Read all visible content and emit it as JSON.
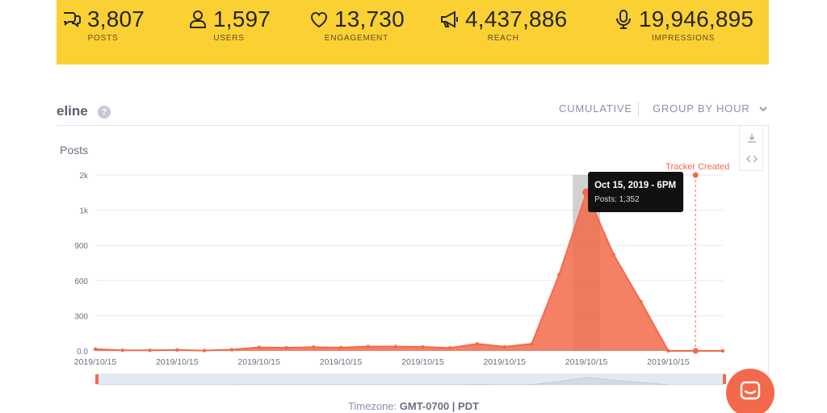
{
  "stats": [
    {
      "icon": "comments-icon",
      "value": "3,807",
      "label": "POSTS"
    },
    {
      "icon": "user-icon",
      "value": "1,597",
      "label": "USERS"
    },
    {
      "icon": "heart-icon",
      "value": "13,730",
      "label": "ENGAGEMENT"
    },
    {
      "icon": "megaphone-icon",
      "value": "4,437,886",
      "label": "REACH"
    },
    {
      "icon": "microphone-icon",
      "value": "19,946,895",
      "label": "IMPRESSIONS"
    }
  ],
  "section": {
    "title": "eline"
  },
  "controls": {
    "cumulative": "CUMULATIVE",
    "group_by": "GROUP BY HOUR"
  },
  "timezone": {
    "prefix": "Timezone: ",
    "value": "GMT-0700 | PDT"
  },
  "colors": {
    "accent": "#f26a4b",
    "stats_bar": "#fbd033"
  },
  "chart_data": {
    "type": "area",
    "ylabel": "Posts",
    "ytick_labels": [
      "0.0",
      "300",
      "600",
      "900",
      "1k",
      "2k"
    ],
    "ytick_values": [
      0,
      300,
      600,
      900,
      1200,
      1500
    ],
    "ylim": [
      0,
      1500
    ],
    "xtick_labels": [
      "2019/10/15",
      "2019/10/15",
      "2019/10/15",
      "2019/10/15",
      "2019/10/15",
      "2019/10/15",
      "2019/10/15",
      "2019/10/15"
    ],
    "grid": true,
    "series": [
      {
        "values": [
          15,
          5,
          5,
          8,
          3,
          10,
          30,
          27,
          32,
          28,
          37,
          37,
          34,
          25,
          60,
          35,
          60,
          650,
          1352,
          820,
          420,
          0,
          0,
          0
        ]
      }
    ],
    "highlight_index": 18,
    "tooltip": {
      "title": "Oct 15, 2019 - 6PM",
      "body": "Posts: 1,352"
    },
    "annotation": {
      "label": "Tracker Created",
      "index": 22
    }
  }
}
